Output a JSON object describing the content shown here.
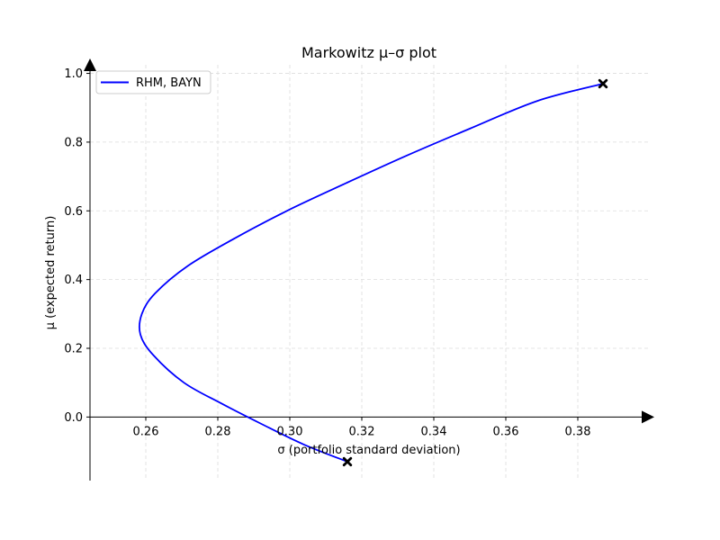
{
  "chart_data": {
    "type": "line",
    "title": "Markowitz μ–σ plot",
    "xlabel": "σ  (portfolio standard deviation)",
    "ylabel": "μ  (expected return)",
    "xlim": [
      0.2445,
      0.3995
    ],
    "ylim": [
      -0.185,
      1.025
    ],
    "xticks": [
      0.26,
      0.28,
      0.3,
      0.32,
      0.34,
      0.36,
      0.38
    ],
    "xtick_labels": [
      "0.26",
      "0.28",
      "0.30",
      "0.32",
      "0.34",
      "0.36",
      "0.38"
    ],
    "yticks": [
      0.0,
      0.2,
      0.4,
      0.6,
      0.8,
      1.0
    ],
    "ytick_labels": [
      "0.0",
      "0.2",
      "0.4",
      "0.6",
      "0.8",
      "1.0"
    ],
    "grid": true,
    "legend_position": "top-left",
    "series": [
      {
        "name": "RHM, BAYN",
        "color": "#0000ff",
        "x": [
          0.316,
          0.3039,
          0.2921,
          0.2809,
          0.2706,
          0.2621,
          0.2585,
          0.2589,
          0.2626,
          0.2717,
          0.2847,
          0.2992,
          0.3155,
          0.3323,
          0.3502,
          0.3688,
          0.387
        ],
        "y": [
          -0.13,
          -0.08,
          -0.02,
          0.04,
          0.1,
          0.18,
          0.24,
          0.3,
          0.36,
          0.44,
          0.52,
          0.6,
          0.68,
          0.76,
          0.84,
          0.92,
          0.97
        ]
      }
    ],
    "markers": [
      {
        "x": 0.316,
        "y": -0.13,
        "color": "#000000"
      },
      {
        "x": 0.387,
        "y": 0.97,
        "color": "#000000"
      }
    ]
  }
}
